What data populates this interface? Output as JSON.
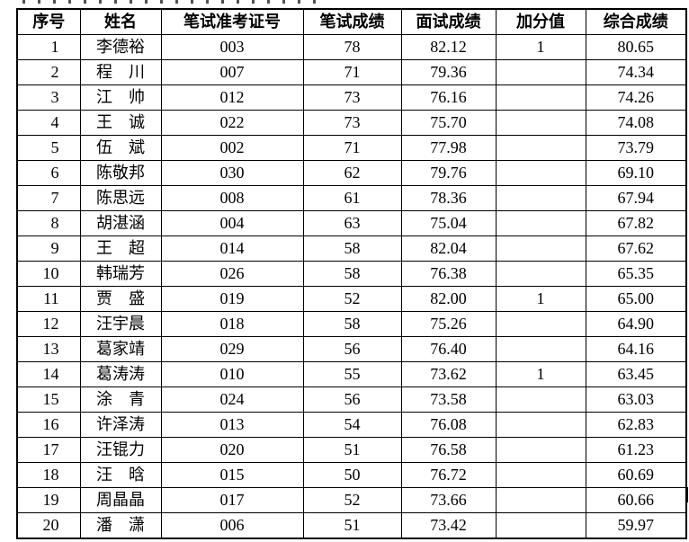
{
  "colors": {
    "background": "#ffffff",
    "border": "#000000",
    "text": "#000000"
  },
  "table": {
    "columns": [
      {
        "key": "index",
        "label": "序号"
      },
      {
        "key": "name",
        "label": "姓名"
      },
      {
        "key": "ticket-no",
        "label": "笔试准考证号"
      },
      {
        "key": "written",
        "label": "笔试成绩"
      },
      {
        "key": "interview",
        "label": "面试成绩"
      },
      {
        "key": "bonus",
        "label": "加分值"
      },
      {
        "key": "total",
        "label": "综合成绩"
      }
    ],
    "rows": [
      [
        "1",
        "李德裕",
        "003",
        "78",
        "82.12",
        "1",
        "80.65"
      ],
      [
        "2",
        "程　川",
        "007",
        "71",
        "79.36",
        "",
        "74.34"
      ],
      [
        "3",
        "江　帅",
        "012",
        "73",
        "76.16",
        "",
        "74.26"
      ],
      [
        "4",
        "王　诚",
        "022",
        "73",
        "75.70",
        "",
        "74.08"
      ],
      [
        "5",
        "伍　斌",
        "002",
        "71",
        "77.98",
        "",
        "73.79"
      ],
      [
        "6",
        "陈敬邦",
        "030",
        "62",
        "79.76",
        "",
        "69.10"
      ],
      [
        "7",
        "陈思远",
        "008",
        "61",
        "78.36",
        "",
        "67.94"
      ],
      [
        "8",
        "胡湛涵",
        "004",
        "63",
        "75.04",
        "",
        "67.82"
      ],
      [
        "9",
        "王　超",
        "014",
        "58",
        "82.04",
        "",
        "67.62"
      ],
      [
        "10",
        "韩瑞芳",
        "026",
        "58",
        "76.38",
        "",
        "65.35"
      ],
      [
        "11",
        "贾　盛",
        "019",
        "52",
        "82.00",
        "1",
        "65.00"
      ],
      [
        "12",
        "汪宇晨",
        "018",
        "58",
        "75.26",
        "",
        "64.90"
      ],
      [
        "13",
        "葛家靖",
        "029",
        "56",
        "76.40",
        "",
        "64.16"
      ],
      [
        "14",
        "葛涛涛",
        "010",
        "55",
        "73.62",
        "1",
        "63.45"
      ],
      [
        "15",
        "涂　青",
        "024",
        "56",
        "73.58",
        "",
        "63.03"
      ],
      [
        "16",
        "许泽涛",
        "013",
        "54",
        "76.08",
        "",
        "62.83"
      ],
      [
        "17",
        "汪锟力",
        "020",
        "51",
        "76.58",
        "",
        "61.23"
      ],
      [
        "18",
        "汪　晗",
        "015",
        "50",
        "76.72",
        "",
        "60.69"
      ],
      [
        "19",
        "周晶晶",
        "017",
        "52",
        "73.66",
        "",
        "60.66"
      ],
      [
        "20",
        "潘　潇",
        "006",
        "51",
        "73.42",
        "",
        "59.97"
      ]
    ]
  }
}
